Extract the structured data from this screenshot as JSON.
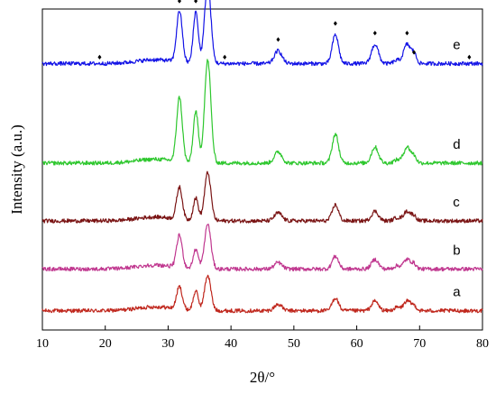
{
  "chart_data": {
    "type": "line",
    "title": "",
    "xlabel": "2θ/°",
    "ylabel": "Intensity (a.u.)",
    "xlim": [
      10,
      80
    ],
    "xticks": [
      "10",
      "20",
      "30",
      "40",
      "50",
      "60",
      "70",
      "80"
    ],
    "yticks_shown": false,
    "grid": false,
    "legend": "none",
    "peak_positions": [
      31.8,
      34.4,
      36.3,
      47.5,
      56.6,
      62.9,
      66.4,
      68.0,
      69.1
    ],
    "minor_markers_e": [
      19.1,
      39.0,
      77.9
    ],
    "series": [
      {
        "name": "a",
        "color": "#c0281e",
        "baseline": 0.06,
        "peak_heights": [
          0.07,
          0.06,
          0.11,
          0.02,
          0.04,
          0.03,
          0.01,
          0.03,
          0.015
        ]
      },
      {
        "name": "b",
        "color": "#c0378f",
        "baseline": 0.19,
        "peak_heights": [
          0.1,
          0.06,
          0.14,
          0.02,
          0.04,
          0.03,
          0.01,
          0.03,
          0.015
        ]
      },
      {
        "name": "c",
        "color": "#7a1414",
        "baseline": 0.34,
        "peak_heights": [
          0.1,
          0.07,
          0.15,
          0.025,
          0.05,
          0.03,
          0.01,
          0.03,
          0.015
        ]
      },
      {
        "name": "d",
        "color": "#2ec72e",
        "baseline": 0.52,
        "peak_heights": [
          0.2,
          0.16,
          0.32,
          0.035,
          0.09,
          0.05,
          0.01,
          0.05,
          0.02
        ]
      },
      {
        "name": "e",
        "color": "#1414e6",
        "baseline": 0.83,
        "peak_heights": [
          0.16,
          0.16,
          0.25,
          0.04,
          0.09,
          0.06,
          0.01,
          0.06,
          0.03
        ]
      }
    ]
  }
}
